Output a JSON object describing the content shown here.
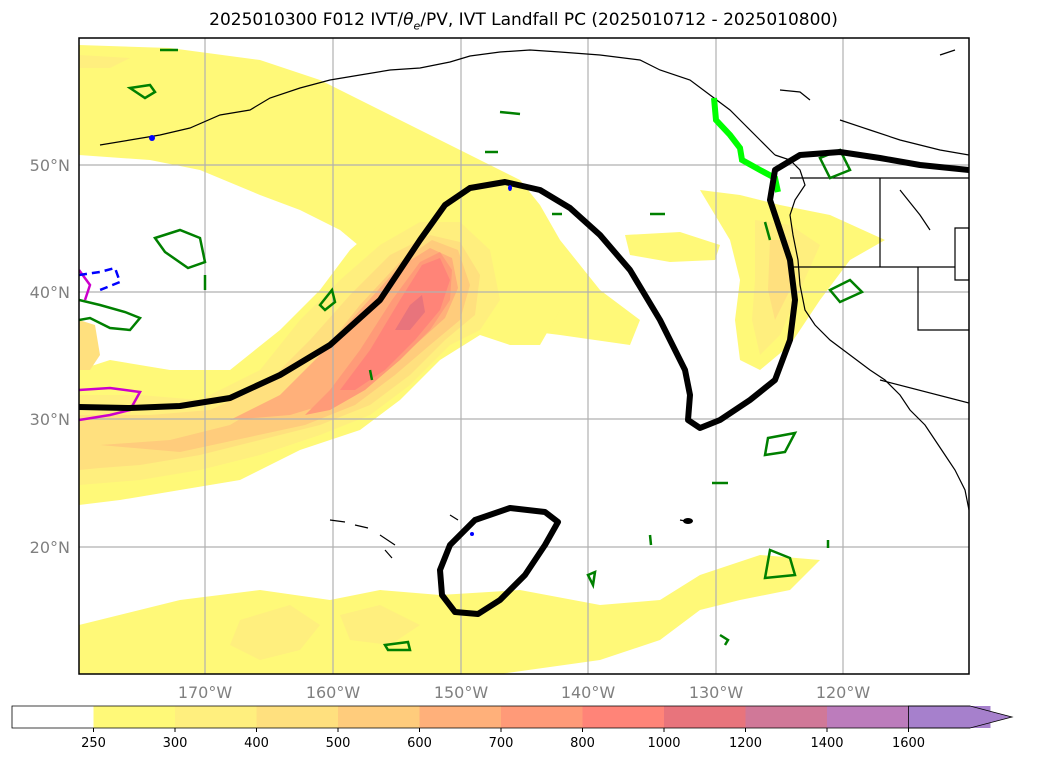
{
  "title": {
    "init": "2025010300 F012 IVT/",
    "theta_symbol": "θ",
    "theta_sub": "e",
    "rest": "/PV, IVT Landfall PC (2025010712 - 2025010800)"
  },
  "axes": {
    "lat_labels": [
      "50°N",
      "40°N",
      "30°N",
      "20°N"
    ],
    "lon_labels": [
      "170°W",
      "160°W",
      "150°W",
      "140°W",
      "130°W",
      "120°W"
    ],
    "label_color": "#808080",
    "grid": true
  },
  "colorbar": {
    "ticks": [
      "250",
      "300",
      "400",
      "500",
      "600",
      "700",
      "800",
      "1000",
      "1200",
      "1400",
      "1600"
    ],
    "colors": [
      "#ffffff",
      "#fff978",
      "#ffef7e",
      "#ffe07e",
      "#ffcc7c",
      "#ffb07a",
      "#ff9a78",
      "#ff8478",
      "#e8747c",
      "#d07898",
      "#bc7cbc",
      "#a680cc"
    ],
    "extend": "max"
  },
  "overlay_colors": {
    "pc_contour": "#000000",
    "pv_contour": "#008000",
    "landfall_line": "#00ff00",
    "coastline": "#000000",
    "dashed_contour": "#0000ff",
    "magenta_contour": "#cc00cc"
  }
}
